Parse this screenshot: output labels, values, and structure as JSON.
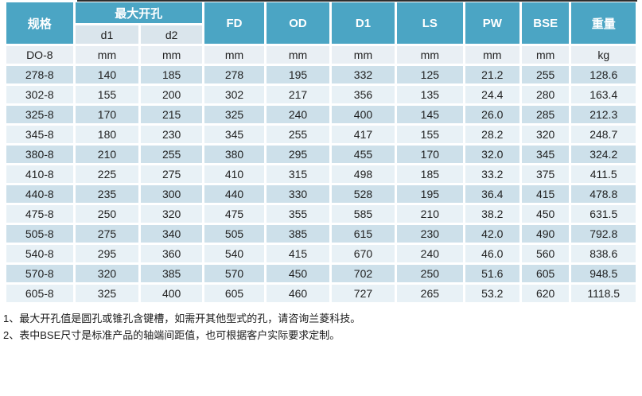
{
  "colors": {
    "header_teal": "#4ba5c4",
    "subheader_bg": "#dae5ec",
    "units_row_bg": "#e9eff4",
    "dark_row_bg": "#cde0ea",
    "light_row_bg": "#e8f1f6",
    "top_rule": "#2e2e2e"
  },
  "table": {
    "header": {
      "col_spec": "规格",
      "max_opening": "最大开孔",
      "sub_d1": "d1",
      "sub_d2": "d2",
      "cols": [
        "FD",
        "OD",
        "D1",
        "LS",
        "PW",
        "BSE",
        "重量"
      ]
    },
    "rows": [
      [
        "DO-8",
        "mm",
        "mm",
        "mm",
        "mm",
        "mm",
        "mm",
        "mm",
        "mm",
        "kg"
      ],
      [
        "278-8",
        "140",
        "185",
        "278",
        "195",
        "332",
        "125",
        "21.2",
        "255",
        "128.6"
      ],
      [
        "302-8",
        "155",
        "200",
        "302",
        "217",
        "356",
        "135",
        "24.4",
        "280",
        "163.4"
      ],
      [
        "325-8",
        "170",
        "215",
        "325",
        "240",
        "400",
        "145",
        "26.0",
        "285",
        "212.3"
      ],
      [
        "345-8",
        "180",
        "230",
        "345",
        "255",
        "417",
        "155",
        "28.2",
        "320",
        "248.7"
      ],
      [
        "380-8",
        "210",
        "255",
        "380",
        "295",
        "455",
        "170",
        "32.0",
        "345",
        "324.2"
      ],
      [
        "410-8",
        "225",
        "275",
        "410",
        "315",
        "498",
        "185",
        "33.2",
        "375",
        "411.5"
      ],
      [
        "440-8",
        "235",
        "300",
        "440",
        "330",
        "528",
        "195",
        "36.4",
        "415",
        "478.8"
      ],
      [
        "475-8",
        "250",
        "320",
        "475",
        "355",
        "585",
        "210",
        "38.2",
        "450",
        "631.5"
      ],
      [
        "505-8",
        "275",
        "340",
        "505",
        "385",
        "615",
        "230",
        "42.0",
        "490",
        "792.8"
      ],
      [
        "540-8",
        "295",
        "360",
        "540",
        "415",
        "670",
        "240",
        "46.0",
        "560",
        "838.6"
      ],
      [
        "570-8",
        "320",
        "385",
        "570",
        "450",
        "702",
        "250",
        "51.6",
        "605",
        "948.5"
      ],
      [
        "605-8",
        "325",
        "400",
        "605",
        "460",
        "727",
        "265",
        "53.2",
        "620",
        "1118.5"
      ]
    ]
  },
  "footnotes": [
    "1、最大开孔值是圆孔或锥孔含键槽，如需开其他型式的孔，请咨询兰菱科技。",
    "2、表中BSE尺寸是标准产品的轴端间距值，也可根据客户实际要求定制。"
  ]
}
